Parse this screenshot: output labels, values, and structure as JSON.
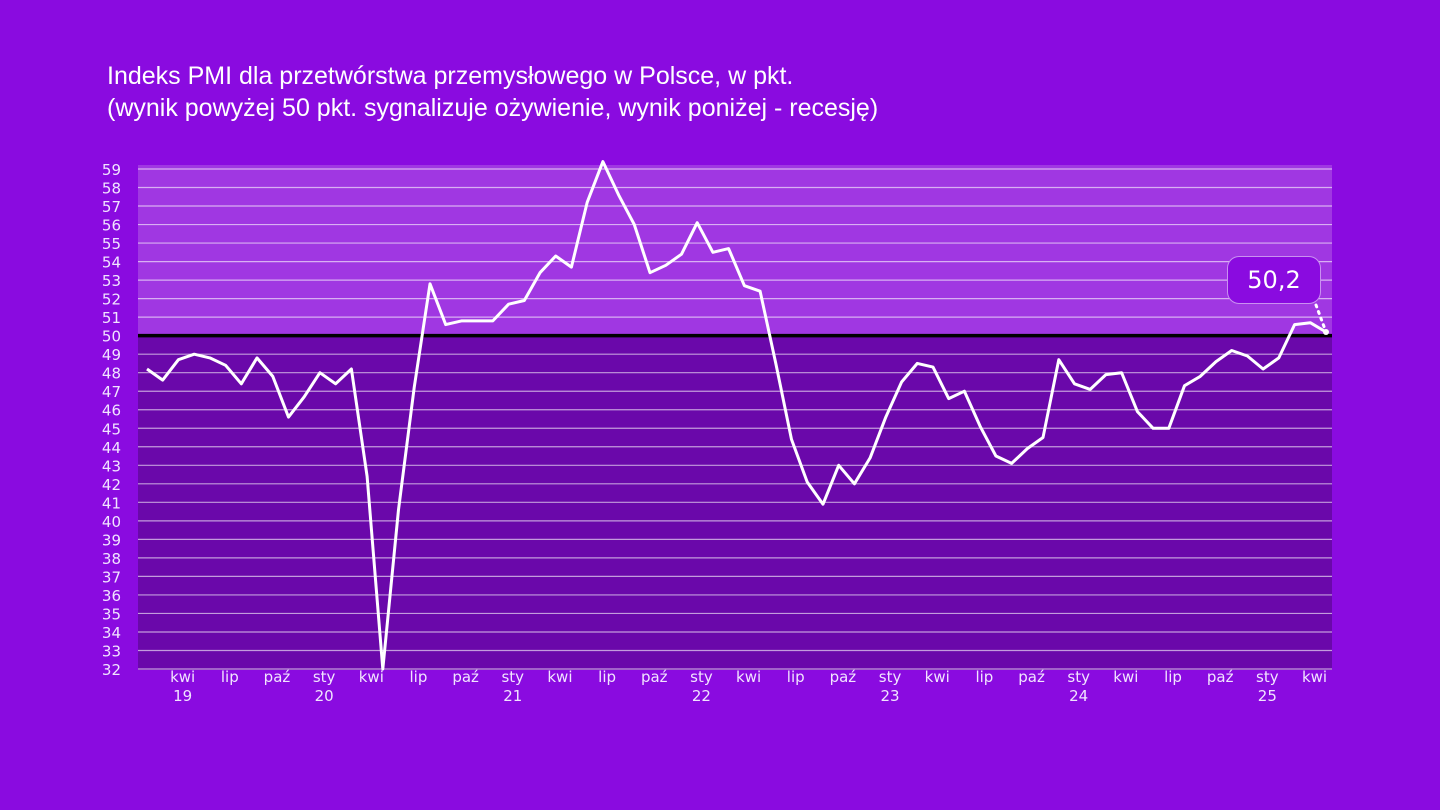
{
  "title": {
    "line1": "Indeks PMI dla przetwórstwa przemysłowego w Polsce, w pkt.",
    "line2": "(wynik powyżej 50 pkt. sygnalizuje ożywienie, wynik poniżej - recesję)"
  },
  "colors": {
    "background": "#8a0be0",
    "above_50": "#a037e2",
    "below_50": "#6a08aa",
    "line": "#ffffff",
    "threshold": "#000000"
  },
  "chart_data": {
    "type": "line",
    "title": "Indeks PMI dla przetwórstwa przemysłowego w Polsce, w pkt.",
    "subtitle": "(wynik powyżej 50 pkt. sygnalizuje ożywienie, wynik poniżej - recesję)",
    "xlabel": "",
    "ylabel": "",
    "ylim": [
      32,
      59
    ],
    "yticks": [
      32,
      33,
      34,
      35,
      36,
      37,
      38,
      39,
      40,
      41,
      42,
      43,
      44,
      45,
      46,
      47,
      48,
      49,
      50,
      51,
      52,
      53,
      54,
      55,
      56,
      57,
      58,
      59
    ],
    "threshold": 50,
    "x_start": "2019-01",
    "x_end": "2025-04",
    "xtick_labels": [
      {
        "month_index": 3,
        "label": "kwi",
        "year": "19"
      },
      {
        "month_index": 6,
        "label": "lip",
        "year": ""
      },
      {
        "month_index": 9,
        "label": "paź",
        "year": ""
      },
      {
        "month_index": 12,
        "label": "sty",
        "year": "20"
      },
      {
        "month_index": 15,
        "label": "kwi",
        "year": ""
      },
      {
        "month_index": 18,
        "label": "lip",
        "year": ""
      },
      {
        "month_index": 21,
        "label": "paź",
        "year": ""
      },
      {
        "month_index": 24,
        "label": "sty",
        "year": "21"
      },
      {
        "month_index": 27,
        "label": "kwi",
        "year": ""
      },
      {
        "month_index": 30,
        "label": "lip",
        "year": ""
      },
      {
        "month_index": 33,
        "label": "paź",
        "year": ""
      },
      {
        "month_index": 36,
        "label": "sty",
        "year": "22"
      },
      {
        "month_index": 39,
        "label": "kwi",
        "year": ""
      },
      {
        "month_index": 42,
        "label": "lip",
        "year": ""
      },
      {
        "month_index": 45,
        "label": "paź",
        "year": ""
      },
      {
        "month_index": 48,
        "label": "sty",
        "year": "23"
      },
      {
        "month_index": 51,
        "label": "kwi",
        "year": ""
      },
      {
        "month_index": 54,
        "label": "lip",
        "year": ""
      },
      {
        "month_index": 57,
        "label": "paź",
        "year": ""
      },
      {
        "month_index": 60,
        "label": "sty",
        "year": "24"
      },
      {
        "month_index": 63,
        "label": "kwi",
        "year": ""
      },
      {
        "month_index": 66,
        "label": "lip",
        "year": ""
      },
      {
        "month_index": 69,
        "label": "paź",
        "year": ""
      },
      {
        "month_index": 72,
        "label": "sty",
        "year": "25"
      },
      {
        "month_index": 75,
        "label": "kwi",
        "year": ""
      }
    ],
    "series": [
      {
        "name": "PMI",
        "values": [
          48.2,
          47.6,
          48.7,
          49.0,
          48.8,
          48.4,
          47.4,
          48.8,
          47.8,
          45.6,
          46.7,
          48.0,
          47.4,
          48.2,
          42.4,
          31.9,
          40.6,
          47.2,
          52.8,
          50.6,
          50.8,
          50.8,
          50.8,
          51.7,
          51.9,
          53.4,
          54.3,
          53.7,
          57.2,
          59.4,
          57.6,
          56.0,
          53.4,
          53.8,
          54.4,
          56.1,
          54.5,
          54.7,
          52.7,
          52.4,
          48.5,
          44.4,
          42.1,
          40.9,
          43.0,
          42.0,
          43.4,
          45.6,
          47.5,
          48.5,
          48.3,
          46.6,
          47.0,
          45.1,
          43.5,
          43.1,
          43.9,
          44.5,
          48.7,
          47.4,
          47.1,
          47.9,
          48.0,
          45.9,
          45.0,
          45.0,
          47.3,
          47.8,
          48.6,
          49.2,
          48.9,
          48.2,
          48.8,
          50.6,
          50.7,
          50.2
        ]
      }
    ],
    "annotation": {
      "label": "50,2",
      "value": 50.2,
      "month_index": 75
    }
  }
}
